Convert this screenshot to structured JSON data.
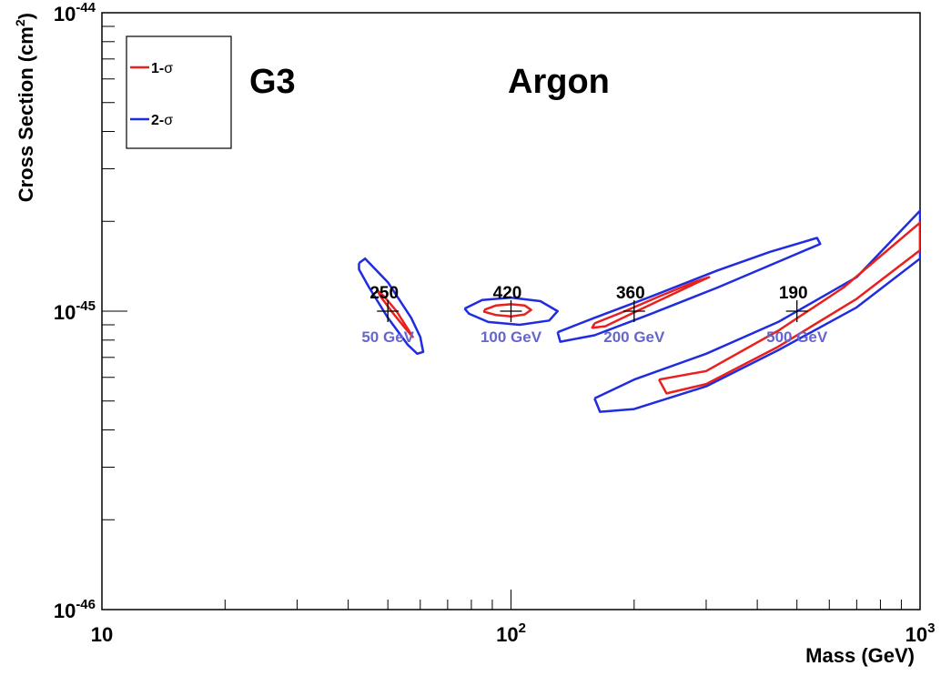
{
  "chart_data": {
    "type": "scatter",
    "title": "",
    "xlabel": "Mass (GeV)",
    "ylabel": "Cross Section (cm",
    "ylabel_sup": "2",
    "ylabel_close": ")",
    "x_scale": "log",
    "y_scale": "log",
    "xlim": [
      10,
      1000
    ],
    "ylim": [
      1e-46,
      1e-44
    ],
    "grid": false,
    "x_ticks": [
      {
        "value": 10,
        "base": "10",
        "exp": ""
      },
      {
        "value": 100,
        "base": "10",
        "exp": "2"
      },
      {
        "value": 1000,
        "base": "10",
        "exp": "3"
      }
    ],
    "y_ticks": [
      {
        "value": 1e-46,
        "base": "10",
        "exp": "-46"
      },
      {
        "value": 1e-45,
        "base": "10",
        "exp": "-45"
      },
      {
        "value": 1e-44,
        "base": "10",
        "exp": "-44"
      }
    ],
    "annotations": [
      {
        "text": "G3",
        "color": "#8b6b5e",
        "x": 31,
        "y": 6.7e-45
      },
      {
        "text": "Argon",
        "color": "#8b6b5e",
        "x": 125,
        "y": 6.7e-45
      }
    ],
    "legend": {
      "position": "top-left",
      "entries": [
        {
          "label": "1-",
          "symbol": "σ",
          "color": "#e8201e"
        },
        {
          "label": "2-",
          "symbol": "σ",
          "color": "#1f2ce0"
        }
      ]
    },
    "benchmarks": [
      {
        "mass": 50,
        "xsec": 1e-45,
        "events": "250",
        "label": "50 GeV"
      },
      {
        "mass": 100,
        "xsec": 1e-45,
        "events": "420",
        "label": "100 GeV"
      },
      {
        "mass": 200,
        "xsec": 1e-45,
        "events": "360",
        "label": "200 GeV"
      },
      {
        "mass": 500,
        "xsec": 1e-45,
        "events": "190",
        "label": "500 GeV"
      }
    ],
    "marker_label_color": "#6666cc",
    "series": [
      {
        "name": "1-σ",
        "color": "#e8201e",
        "contours": [
          {
            "x": [
              47,
              49,
              52.5,
              56,
              57.5,
              55,
              51,
              48,
              47
            ],
            "y": [
              1.18e-45,
              1.12e-45,
              1e-45,
              8.7e-46,
              8.2e-46,
              8.8e-46,
              1e-45,
              1.12e-45,
              1.18e-45
            ]
          },
          {
            "x": [
              86,
              92,
              100,
              108,
              112,
              108,
              100,
              92,
              86,
              86
            ],
            "y": [
              1.01e-45,
              1.045e-45,
              1.055e-45,
              1.045e-45,
              1.01e-45,
              9.75e-46,
              9.6e-46,
              9.7e-46,
              9.95e-46,
              1.01e-45
            ]
          },
          {
            "x": [
              160,
              190,
              230,
              280,
              305,
              290,
              245,
              200,
              170,
              158,
              160
            ],
            "y": [
              9.1e-46,
              1e-45,
              1.12e-45,
              1.25e-45,
              1.3e-45,
              1.26e-45,
              1.13e-45,
              9.9e-46,
              8.9e-46,
              8.8e-46,
              9.1e-46
            ]
          },
          {
            "x": [
              230,
              300,
              450,
              650,
              1000,
              1000,
              700,
              450,
              300,
              240,
              230
            ],
            "y": [
              5.9e-46,
              6.3e-46,
              8.6e-46,
              1.2e-45,
              1.98e-45,
              1.6e-45,
              1.1e-45,
              7.6e-46,
              5.7e-46,
              5.3e-46,
              5.9e-46
            ]
          }
        ]
      },
      {
        "name": "2-σ",
        "color": "#1f2ce0",
        "contours": [
          {
            "x": [
              42.5,
              44,
              50,
              57,
              60,
              61,
              59,
              56,
              50,
              45,
              42.5,
              42.5
            ],
            "y": [
              1.45e-45,
              1.5e-45,
              1.25e-45,
              9.5e-46,
              8.2e-46,
              7.3e-46,
              7.2e-46,
              7.7e-46,
              9.5e-46,
              1.2e-45,
              1.38e-45,
              1.45e-45
            ]
          },
          {
            "x": [
              77,
              85,
              100,
              118,
              130,
              124,
              105,
              88,
              79,
              77
            ],
            "y": [
              1.02e-45,
              1.09e-45,
              1.11e-45,
              1.08e-45,
              1e-45,
              9.3e-46,
              9e-46,
              9.2e-46,
              9.8e-46,
              1.02e-45
            ]
          },
          {
            "x": [
              130,
              160,
              220,
              320,
              430,
              560,
              570,
              480,
              320,
              220,
              160,
              132,
              130
            ],
            "y": [
              8.5e-46,
              9.5e-46,
              1.12e-45,
              1.37e-45,
              1.58e-45,
              1.76e-45,
              1.68e-45,
              1.52e-45,
              1.2e-45,
              9.8e-46,
              8.3e-46,
              7.9e-46,
              8.5e-46
            ]
          },
          {
            "x": [
              160,
              200,
              300,
              450,
              700,
              1000,
              1000,
              700,
              450,
              300,
              200,
              165,
              160
            ],
            "y": [
              5.1e-46,
              5.9e-46,
              7.2e-46,
              9.2e-46,
              1.3e-45,
              2.17e-45,
              1.5e-45,
              1.03e-45,
              7.4e-46,
              5.6e-46,
              4.7e-46,
              4.6e-46,
              5.1e-46
            ]
          }
        ]
      }
    ]
  }
}
